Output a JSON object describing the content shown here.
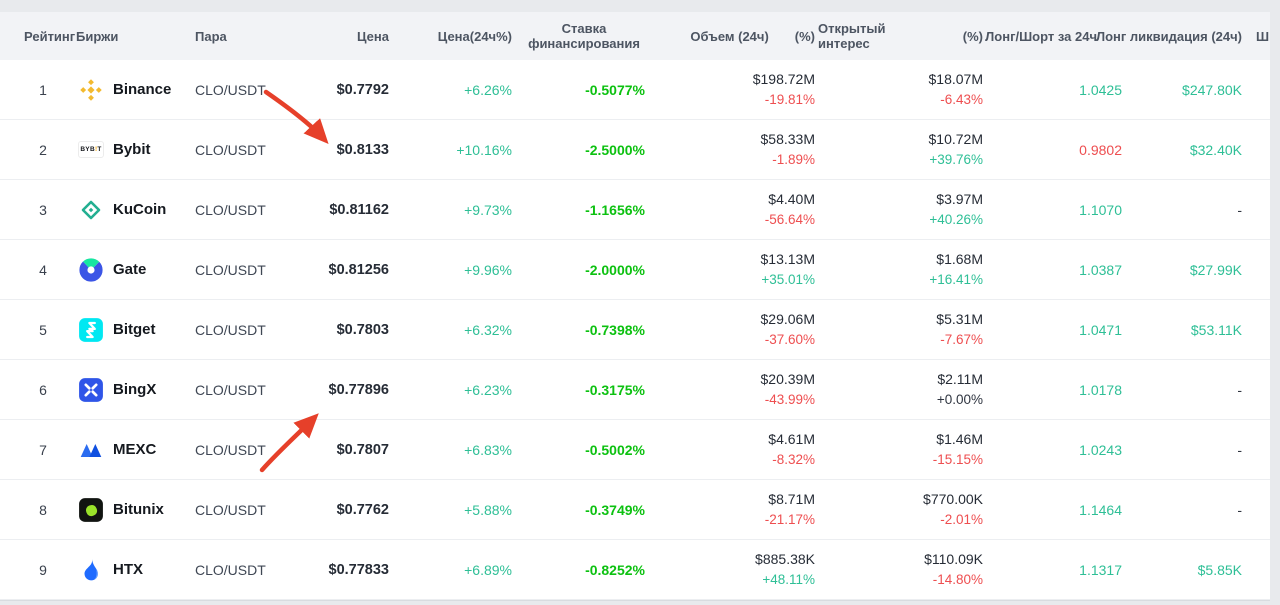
{
  "colors": {
    "positive_teal": "#2ebf96",
    "negative_red": "#ee4e50",
    "funding_green": "#0cc110",
    "arrow_red": "#e6402a",
    "header_text": "#4d5562",
    "value_dark": "#262c36"
  },
  "table": {
    "columns": {
      "rank": "Рейтинг",
      "exchange": "Биржи",
      "pair": "Пара",
      "price": "Цена",
      "change24h": "Цена(24ч%)",
      "funding": "Ставка финансирования",
      "volume": "Объем (24ч)",
      "volume_pct": "(%)",
      "oi": "Открытый интерес",
      "oi_pct": "(%)",
      "long_short": "Лонг/Шорт за 24ч",
      "long_liq": "Лонг ликвидация (24ч)",
      "extra": "Ш"
    },
    "rows": [
      {
        "rank": "1",
        "exchange": "Binance",
        "icon": "binance-icon",
        "pair": "CLO/USDT",
        "price": "$0.7792",
        "change24h": "+6.26%",
        "funding": "-0.5077%",
        "volume": "$198.72M",
        "volume_pct": "-19.81%",
        "volume_pct_dir": "down",
        "oi": "$18.07M",
        "oi_pct": "-6.43%",
        "oi_pct_dir": "down",
        "long_short": "1.0425",
        "long_short_dir": "up",
        "long_liq": "$247.80K"
      },
      {
        "rank": "2",
        "exchange": "Bybit",
        "icon": "bybit-icon",
        "pair": "CLO/USDT",
        "price": "$0.8133",
        "change24h": "+10.16%",
        "funding": "-2.5000%",
        "volume": "$58.33M",
        "volume_pct": "-1.89%",
        "volume_pct_dir": "down",
        "oi": "$10.72M",
        "oi_pct": "+39.76%",
        "oi_pct_dir": "up",
        "long_short": "0.9802",
        "long_short_dir": "down",
        "long_liq": "$32.40K"
      },
      {
        "rank": "3",
        "exchange": "KuCoin",
        "icon": "kucoin-icon",
        "pair": "CLO/USDT",
        "price": "$0.81162",
        "change24h": "+9.73%",
        "funding": "-1.1656%",
        "volume": "$4.40M",
        "volume_pct": "-56.64%",
        "volume_pct_dir": "down",
        "oi": "$3.97M",
        "oi_pct": "+40.26%",
        "oi_pct_dir": "up",
        "long_short": "1.1070",
        "long_short_dir": "up",
        "long_liq": "-"
      },
      {
        "rank": "4",
        "exchange": "Gate",
        "icon": "gate-icon",
        "pair": "CLO/USDT",
        "price": "$0.81256",
        "change24h": "+9.96%",
        "funding": "-2.0000%",
        "volume": "$13.13M",
        "volume_pct": "+35.01%",
        "volume_pct_dir": "up",
        "oi": "$1.68M",
        "oi_pct": "+16.41%",
        "oi_pct_dir": "up",
        "long_short": "1.0387",
        "long_short_dir": "up",
        "long_liq": "$27.99K"
      },
      {
        "rank": "5",
        "exchange": "Bitget",
        "icon": "bitget-icon",
        "pair": "CLO/USDT",
        "price": "$0.7803",
        "change24h": "+6.32%",
        "funding": "-0.7398%",
        "volume": "$29.06M",
        "volume_pct": "-37.60%",
        "volume_pct_dir": "down",
        "oi": "$5.31M",
        "oi_pct": "-7.67%",
        "oi_pct_dir": "down",
        "long_short": "1.0471",
        "long_short_dir": "up",
        "long_liq": "$53.11K"
      },
      {
        "rank": "6",
        "exchange": "BingX",
        "icon": "bingx-icon",
        "pair": "CLO/USDT",
        "price": "$0.77896",
        "change24h": "+6.23%",
        "funding": "-0.3175%",
        "volume": "$20.39M",
        "volume_pct": "-43.99%",
        "volume_pct_dir": "down",
        "oi": "$2.11M",
        "oi_pct": "+0.00%",
        "oi_pct_dir": "flat",
        "long_short": "1.0178",
        "long_short_dir": "up",
        "long_liq": "-"
      },
      {
        "rank": "7",
        "exchange": "MEXC",
        "icon": "mexc-icon",
        "pair": "CLO/USDT",
        "price": "$0.7807",
        "change24h": "+6.83%",
        "funding": "-0.5002%",
        "volume": "$4.61M",
        "volume_pct": "-8.32%",
        "volume_pct_dir": "down",
        "oi": "$1.46M",
        "oi_pct": "-15.15%",
        "oi_pct_dir": "down",
        "long_short": "1.0243",
        "long_short_dir": "up",
        "long_liq": "-"
      },
      {
        "rank": "8",
        "exchange": "Bitunix",
        "icon": "bitunix-icon",
        "pair": "CLO/USDT",
        "price": "$0.7762",
        "change24h": "+5.88%",
        "funding": "-0.3749%",
        "volume": "$8.71M",
        "volume_pct": "-21.17%",
        "volume_pct_dir": "down",
        "oi": "$770.00K",
        "oi_pct": "-2.01%",
        "oi_pct_dir": "down",
        "long_short": "1.1464",
        "long_short_dir": "up",
        "long_liq": "-"
      },
      {
        "rank": "9",
        "exchange": "HTX",
        "icon": "htx-icon",
        "pair": "CLO/USDT",
        "price": "$0.77833",
        "change24h": "+6.89%",
        "funding": "-0.8252%",
        "volume": "$885.38K",
        "volume_pct": "+48.11%",
        "volume_pct_dir": "up",
        "oi": "$110.09K",
        "oi_pct": "-14.80%",
        "oi_pct_dir": "down",
        "long_short": "1.1317",
        "long_short_dir": "up",
        "long_liq": "$5.85K"
      }
    ]
  },
  "annotations": {
    "arrow_color": "#e6402a",
    "arrows": [
      "hand-drawn arrow pointing to Bybit price $0.8133",
      "hand-drawn arrow pointing to BingX price $0.77896"
    ]
  }
}
